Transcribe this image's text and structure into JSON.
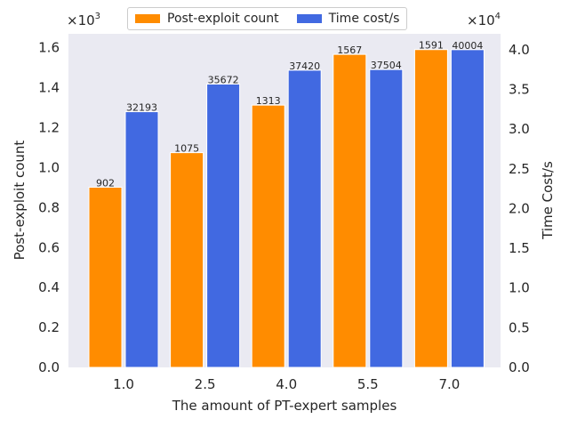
{
  "chart_data": {
    "type": "bar",
    "title": "",
    "xlabel": "The amount of PT-expert samples",
    "categories": [
      "1.0",
      "2.5",
      "4.0",
      "5.5",
      "7.0"
    ],
    "series": [
      {
        "name": "Post-exploit count",
        "axis": "left",
        "color": "#ff8c00",
        "values": [
          902,
          1075,
          1313,
          1567,
          1591
        ],
        "labels": [
          "902",
          "1075",
          "1313",
          "1567",
          "1591"
        ]
      },
      {
        "name": "Time cost/s",
        "axis": "right",
        "color": "#4169e1",
        "values": [
          32193,
          35672,
          37420,
          37504,
          40004
        ],
        "labels": [
          "32193",
          "35672",
          "37420",
          "37504",
          "40004"
        ]
      }
    ],
    "left_axis": {
      "label": "Post-exploit count",
      "ylim": [
        0,
        1.67
      ],
      "scale": 1000,
      "offset_text_base": "×10",
      "offset_text_exp": "3",
      "ticks": [
        0.0,
        0.2,
        0.4,
        0.6,
        0.8,
        1.0,
        1.2,
        1.4,
        1.6
      ],
      "tick_labels": [
        "0.0",
        "0.2",
        "0.4",
        "0.6",
        "0.8",
        "1.0",
        "1.2",
        "1.4",
        "1.6"
      ]
    },
    "right_axis": {
      "label": "Time Cost/s",
      "ylim": [
        0,
        4.2
      ],
      "scale": 10000,
      "offset_text_base": "×10",
      "offset_text_exp": "4",
      "ticks": [
        0.0,
        0.5,
        1.0,
        1.5,
        2.0,
        2.5,
        3.0,
        3.5,
        4.0
      ],
      "tick_labels": [
        "0.0",
        "0.5",
        "1.0",
        "1.5",
        "2.0",
        "2.5",
        "3.0",
        "3.5",
        "4.0"
      ]
    },
    "background_color": "#eaeaf2",
    "legend_position": "top-center"
  },
  "legend": {
    "items": [
      {
        "label": "Post-exploit count",
        "color": "#ff8c00"
      },
      {
        "label": "Time cost/s",
        "color": "#4169e1"
      }
    ]
  }
}
